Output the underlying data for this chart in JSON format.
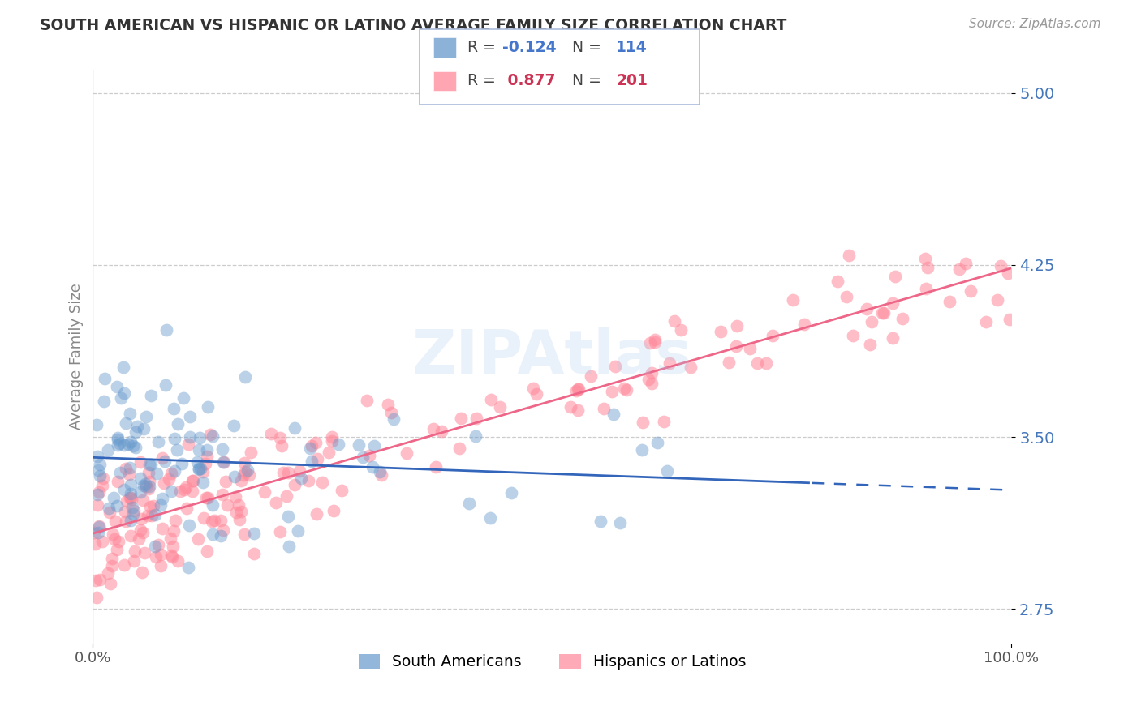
{
  "title": "SOUTH AMERICAN VS HISPANIC OR LATINO AVERAGE FAMILY SIZE CORRELATION CHART",
  "source": "Source: ZipAtlas.com",
  "ylabel": "Average Family Size",
  "xlabel": "",
  "xlim": [
    0,
    1
  ],
  "ylim": [
    2.6,
    5.1
  ],
  "yticks": [
    2.75,
    3.5,
    4.25,
    5.0
  ],
  "xticks": [
    0,
    1
  ],
  "xticklabels": [
    "0.0%",
    "100.0%"
  ],
  "blue_R": -0.124,
  "blue_N": 114,
  "pink_R": 0.877,
  "pink_N": 201,
  "blue_color": "#6699CC",
  "pink_color": "#FF8899",
  "blue_label": "South Americans",
  "pink_label": "Hispanics or Latinos",
  "watermark": "ZIPAtlas",
  "background_color": "#FFFFFF",
  "grid_color": "#CCCCCC",
  "title_color": "#333333",
  "axis_label_color": "#888888",
  "tick_color": "#4477BB",
  "source_color": "#999999",
  "blue_line_color": "#3366BB",
  "pink_line_color": "#EE6688"
}
